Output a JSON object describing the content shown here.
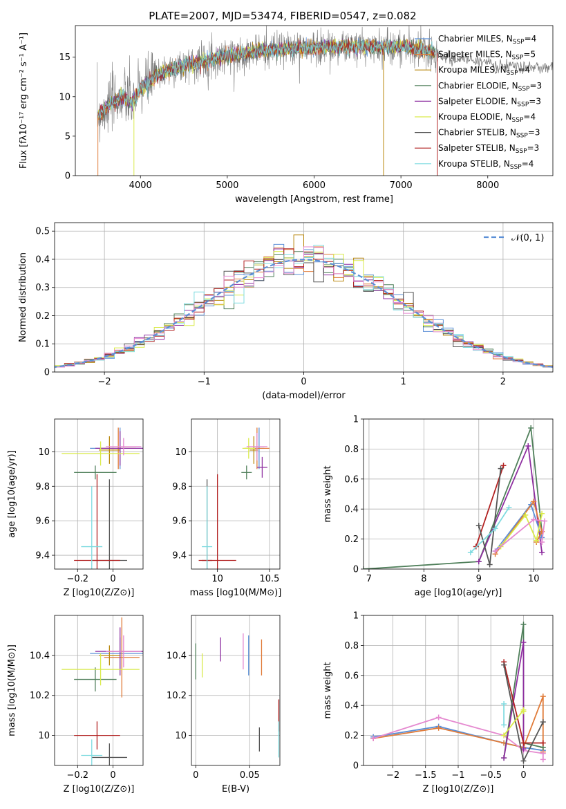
{
  "figure_title": "PLATE=2007, MJD=53474, FIBERID=0547, z=0.082",
  "colors": {
    "Chabrier MILES": "#5b8fd6",
    "Salpeter MILES": "#e07b39",
    "Kroupa MILES": "#b8860b",
    "Chabrier ELODIE": "#4f7f5a",
    "Salpeter ELODIE": "#8e2fa0",
    "Kroupa ELODIE": "#d9ea4a",
    "Chabrier STELIB": "#555555",
    "Salpeter STELIB": "#b22222",
    "Kroupa STELIB": "#7fdbe0",
    "pink": "#e58ad0",
    "normal": "#5b8fd6"
  },
  "chart_data": [
    {
      "id": "spectrum",
      "type": "line",
      "title": "PLATE=2007, MJD=53474, FIBERID=0547, z=0.082",
      "xlabel": "wavelength [Angstrom, rest frame]",
      "ylabel": "Flux [fλ10⁻¹⁷ erg cm⁻² s⁻¹ A⁻¹]",
      "xlim": [
        3250,
        8750
      ],
      "ylim": [
        0,
        19
      ],
      "xticks": [
        4000,
        5000,
        6000,
        7000,
        8000
      ],
      "yticks": [
        0,
        5,
        10,
        15
      ],
      "continuum_x": [
        3500,
        3600,
        3700,
        3800,
        3900,
        4000,
        4100,
        4200,
        4400,
        4600,
        4800,
        5000,
        5200,
        5400,
        5600,
        5800,
        6000,
        6200,
        6400,
        6600,
        6800,
        7000,
        7200,
        7400,
        7600,
        7800,
        8000,
        8200,
        8400
      ],
      "continuum_y": [
        7.5,
        8.5,
        9.5,
        10.0,
        9.2,
        11.0,
        11.8,
        12.8,
        13.6,
        14.2,
        14.7,
        15.2,
        15.5,
        15.8,
        16.0,
        16.1,
        16.2,
        16.3,
        16.3,
        16.4,
        16.3,
        16.3,
        16.0,
        15.6,
        14.6,
        14.8,
        14.2,
        13.8,
        13.7
      ],
      "legend": [
        {
          "label": "Chabrier MILES, N",
          "sub": "SSP",
          "suffix": "=4"
        },
        {
          "label": "Salpeter MILES, N",
          "sub": "SSP",
          "suffix": "=5"
        },
        {
          "label": "Kroupa MILES, N",
          "sub": "SSP",
          "suffix": "=4"
        },
        {
          "label": "Chabrier ELODIE, N",
          "sub": "SSP",
          "suffix": "=3"
        },
        {
          "label": "Salpeter ELODIE, N",
          "sub": "SSP",
          "suffix": "=3"
        },
        {
          "label": "Kroupa ELODIE, N",
          "sub": "SSP",
          "suffix": "=4"
        },
        {
          "label": "Chabrier STELIB, N",
          "sub": "SSP",
          "suffix": "=3"
        },
        {
          "label": "Salpeter STELIB, N",
          "sub": "SSP",
          "suffix": "=3"
        },
        {
          "label": "Kroupa STELIB, N",
          "sub": "SSP",
          "suffix": "=4"
        }
      ],
      "legend_position": "right"
    },
    {
      "id": "residual_hist",
      "type": "line",
      "xlabel": "(data-model)/error",
      "ylabel": "Normed distribution",
      "xlim": [
        -2.5,
        2.5
      ],
      "ylim": [
        0,
        0.53
      ],
      "xticks": [
        -2,
        -1,
        0,
        1,
        2
      ],
      "yticks": [
        0.0,
        0.1,
        0.2,
        0.3,
        0.4,
        0.5
      ],
      "bin_width": 0.1,
      "legend": "𝒩(0, 1)",
      "legend_position": "upper right",
      "grid": true
    },
    {
      "id": "age_vs_Z",
      "type": "scatter",
      "xlabel": "Z [log10(Z/Z⊙)]",
      "ylabel": "age  [log10(age/yr)]",
      "xlim": [
        -0.33,
        0.17
      ],
      "ylim": [
        9.32,
        10.19
      ],
      "xticks": [
        -0.2,
        0.0
      ],
      "yticks": [
        9.4,
        9.6,
        9.8,
        10.0
      ],
      "points": [
        {
          "x": 0.04,
          "y": 10.02,
          "xerr": 0.17,
          "yerr": 0.12,
          "c": "#5b8fd6"
        },
        {
          "x": 0.03,
          "y": 10.02,
          "xerr": 0.1,
          "yerr": 0.12,
          "c": "#e07b39"
        },
        {
          "x": -0.02,
          "y": 10.01,
          "xerr": 0.06,
          "yerr": 0.08,
          "c": "#b8860b"
        },
        {
          "x": -0.1,
          "y": 9.88,
          "xerr": 0.12,
          "yerr": 0.04,
          "c": "#4f7f5a"
        },
        {
          "x": 0.04,
          "y": 10.02,
          "xerr": 0.14,
          "yerr": 0.1,
          "c": "#8e2fa0"
        },
        {
          "x": -0.07,
          "y": 9.99,
          "xerr": 0.22,
          "yerr": 0.07,
          "c": "#d9ea4a"
        },
        {
          "x": -0.02,
          "y": 9.37,
          "xerr": 0.1,
          "yerr": 0.47,
          "c": "#555555"
        },
        {
          "x": -0.09,
          "y": 9.37,
          "xerr": 0.13,
          "yerr": 0.5,
          "c": "#b22222"
        },
        {
          "x": -0.12,
          "y": 9.45,
          "xerr": 0.06,
          "yerr": 0.35,
          "c": "#7fdbe0"
        },
        {
          "x": 0.06,
          "y": 10.03,
          "xerr": 0.1,
          "yerr": 0.05,
          "c": "#e58ad0"
        }
      ]
    },
    {
      "id": "age_vs_mass",
      "type": "scatter",
      "xlabel": "mass [log10(M/M⊙)]",
      "ylabel": "",
      "xlim": [
        9.75,
        10.6
      ],
      "ylim": [
        9.32,
        10.19
      ],
      "xticks": [
        10.0,
        10.5
      ],
      "yticks": [
        9.4,
        9.6,
        9.8,
        10.0
      ],
      "points": [
        {
          "x": 10.4,
          "y": 10.02,
          "xerr": 0.05,
          "yerr": 0.12,
          "c": "#5b8fd6"
        },
        {
          "x": 10.38,
          "y": 10.02,
          "xerr": 0.12,
          "yerr": 0.12,
          "c": "#e07b39"
        },
        {
          "x": 10.35,
          "y": 10.01,
          "xerr": 0.04,
          "yerr": 0.08,
          "c": "#b8860b"
        },
        {
          "x": 10.28,
          "y": 9.88,
          "xerr": 0.05,
          "yerr": 0.04,
          "c": "#4f7f5a"
        },
        {
          "x": 10.43,
          "y": 9.91,
          "xerr": 0.05,
          "yerr": 0.06,
          "c": "#8e2fa0"
        },
        {
          "x": 10.3,
          "y": 10.02,
          "xerr": 0.06,
          "yerr": 0.06,
          "c": "#d9ea4a"
        },
        {
          "x": 9.9,
          "y": 9.37,
          "xerr": 0.05,
          "yerr": 0.47,
          "c": "#555555"
        },
        {
          "x": 10.0,
          "y": 9.37,
          "xerr": 0.18,
          "yerr": 0.5,
          "c": "#b22222"
        },
        {
          "x": 9.9,
          "y": 9.45,
          "xerr": 0.05,
          "yerr": 0.35,
          "c": "#7fdbe0"
        },
        {
          "x": 10.38,
          "y": 10.03,
          "xerr": 0.1,
          "yerr": 0.08,
          "c": "#e58ad0"
        }
      ]
    },
    {
      "id": "weight_vs_age",
      "type": "line",
      "xlabel": "age  [log10(age/yr)]",
      "ylabel": "mass weight",
      "xlim": [
        6.9,
        10.35
      ],
      "ylim": [
        0,
        1.0
      ],
      "xticks": [
        7,
        8,
        9,
        10
      ],
      "yticks": [
        0.0,
        0.2,
        0.4,
        0.6,
        0.8,
        1.0
      ],
      "series": [
        {
          "c": "#4f7f5a",
          "x": [
            6.9,
            9.0,
            9.95,
            10.15
          ],
          "y": [
            0.0,
            0.05,
            0.94,
            0.25
          ]
        },
        {
          "c": "#8e2fa0",
          "x": [
            9.0,
            9.9,
            10.15
          ],
          "y": [
            0.05,
            0.82,
            0.11
          ]
        },
        {
          "c": "#b22222",
          "x": [
            8.95,
            9.45
          ],
          "y": [
            0.15,
            0.69
          ]
        },
        {
          "c": "#555555",
          "x": [
            9.0,
            9.2,
            9.4
          ],
          "y": [
            0.29,
            0.03,
            0.67
          ]
        },
        {
          "c": "#7fdbe0",
          "x": [
            8.85,
            9.3,
            9.55
          ],
          "y": [
            0.11,
            0.27,
            0.41
          ]
        },
        {
          "c": "#5b8fd6",
          "x": [
            9.3,
            9.95,
            10.15
          ],
          "y": [
            0.12,
            0.43,
            0.21
          ]
        },
        {
          "c": "#e07b39",
          "x": [
            9.3,
            10.0,
            10.15,
            10.05
          ],
          "y": [
            0.1,
            0.45,
            0.25,
            0.18
          ]
        },
        {
          "c": "#d9ea4a",
          "x": [
            9.4,
            9.85,
            10.05,
            10.15
          ],
          "y": [
            0.15,
            0.36,
            0.19,
            0.37
          ]
        },
        {
          "c": "#e58ad0",
          "x": [
            9.3,
            10.0,
            10.2,
            10.15
          ],
          "y": [
            0.12,
            0.33,
            0.32,
            0.18
          ]
        }
      ]
    },
    {
      "id": "mass_vs_Z",
      "type": "scatter",
      "xlabel": "Z [log10(Z/Z⊙)]",
      "ylabel": "mass [log10(M/M⊙)]",
      "xlim": [
        -0.33,
        0.17
      ],
      "ylim": [
        9.85,
        10.6
      ],
      "xticks": [
        -0.2,
        0.0
      ],
      "yticks": [
        10.0,
        10.2,
        10.4
      ],
      "points": [
        {
          "x": 0.04,
          "y": 10.41,
          "xerr": 0.17,
          "yerr": 0.08,
          "c": "#5b8fd6"
        },
        {
          "x": 0.05,
          "y": 10.39,
          "xerr": 0.1,
          "yerr": 0.2,
          "c": "#e07b39"
        },
        {
          "x": -0.02,
          "y": 10.4,
          "xerr": 0.06,
          "yerr": 0.05,
          "c": "#b8860b"
        },
        {
          "x": -0.1,
          "y": 10.28,
          "xerr": 0.12,
          "yerr": 0.06,
          "c": "#4f7f5a"
        },
        {
          "x": 0.04,
          "y": 10.42,
          "xerr": 0.14,
          "yerr": 0.12,
          "c": "#8e2fa0"
        },
        {
          "x": -0.07,
          "y": 10.33,
          "xerr": 0.22,
          "yerr": 0.08,
          "c": "#d9ea4a"
        },
        {
          "x": -0.02,
          "y": 9.89,
          "xerr": 0.1,
          "yerr": 0.07,
          "c": "#555555"
        },
        {
          "x": -0.09,
          "y": 10.0,
          "xerr": 0.13,
          "yerr": 0.07,
          "c": "#b22222"
        },
        {
          "x": -0.12,
          "y": 9.9,
          "xerr": 0.06,
          "yerr": 0.08,
          "c": "#7fdbe0"
        },
        {
          "x": 0.06,
          "y": 10.42,
          "xerr": 0.1,
          "yerr": 0.08,
          "c": "#e58ad0"
        }
      ]
    },
    {
      "id": "mass_vs_EBV",
      "type": "scatter",
      "xlabel": "E(B-V)",
      "ylabel": "",
      "xlim": [
        -0.004,
        0.078
      ],
      "ylim": [
        9.85,
        10.6
      ],
      "xticks": [
        0.0,
        0.05
      ],
      "yticks": [
        10.0,
        10.2,
        10.4
      ],
      "points": [
        {
          "x": 0.049,
          "y": 10.4,
          "yerr": 0.1,
          "c": "#5b8fd6"
        },
        {
          "x": 0.061,
          "y": 10.39,
          "yerr": 0.09,
          "c": "#e07b39"
        },
        {
          "x": 0.0,
          "y": 10.37,
          "yerr": 0.09,
          "c": "#4f7f5a"
        },
        {
          "x": 0.023,
          "y": 10.43,
          "yerr": 0.06,
          "c": "#8e2fa0"
        },
        {
          "x": 0.006,
          "y": 10.35,
          "yerr": 0.06,
          "c": "#d9ea4a"
        },
        {
          "x": 0.059,
          "y": 9.98,
          "yerr": 0.06,
          "c": "#555555"
        },
        {
          "x": 0.077,
          "y": 10.1,
          "yerr": 0.08,
          "c": "#b22222"
        },
        {
          "x": 0.077,
          "y": 9.98,
          "yerr": 0.09,
          "c": "#7fdbe0"
        },
        {
          "x": 0.044,
          "y": 10.42,
          "yerr": 0.09,
          "c": "#e58ad0"
        }
      ]
    },
    {
      "id": "weight_vs_Z",
      "type": "line",
      "xlabel": "Z [log10(Z/Z⊙)]",
      "ylabel": "mass weight",
      "xlim": [
        -2.45,
        0.45
      ],
      "ylim": [
        0,
        1.0
      ],
      "xticks": [
        -2.0,
        -1.5,
        -1.0,
        -0.5,
        0.0
      ],
      "yticks": [
        0.0,
        0.2,
        0.4,
        0.6,
        0.8,
        1.0
      ],
      "series": [
        {
          "c": "#5b8fd6",
          "x": [
            -2.3,
            -1.3,
            -0.3,
            0.0,
            0.3
          ],
          "y": [
            0.19,
            0.26,
            0.15,
            0.12,
            0.1
          ]
        },
        {
          "c": "#e07b39",
          "x": [
            -2.3,
            -1.3,
            -0.3,
            0.0,
            0.3,
            0.3
          ],
          "y": [
            0.18,
            0.25,
            0.15,
            0.12,
            0.46,
            0.09
          ]
        },
        {
          "c": "#e58ad0",
          "x": [
            -2.3,
            -1.3,
            -0.3,
            0.0,
            0.3,
            0.3
          ],
          "y": [
            0.18,
            0.32,
            0.2,
            0.1,
            0.08,
            0.04
          ]
        },
        {
          "c": "#4f7f5a",
          "x": [
            -0.3,
            0.0,
            0.0,
            0.3
          ],
          "y": [
            0.05,
            0.94,
            0.15,
            0.12
          ]
        },
        {
          "c": "#8e2fa0",
          "x": [
            -0.3,
            0.0,
            0.0
          ],
          "y": [
            0.05,
            0.82,
            0.11
          ]
        },
        {
          "c": "#b22222",
          "x": [
            -0.3,
            0.0,
            0.3
          ],
          "y": [
            0.69,
            0.15,
            0.15
          ]
        },
        {
          "c": "#555555",
          "x": [
            -0.3,
            0.0,
            0.3
          ],
          "y": [
            0.67,
            0.03,
            0.29
          ]
        },
        {
          "c": "#7fdbe0",
          "x": [
            -0.3,
            -0.3
          ],
          "y": [
            0.41,
            0.27
          ]
        },
        {
          "c": "#d9ea4a",
          "x": [
            -0.3,
            0.0,
            0.0
          ],
          "y": [
            0.2,
            0.37,
            0.36
          ]
        }
      ]
    }
  ]
}
